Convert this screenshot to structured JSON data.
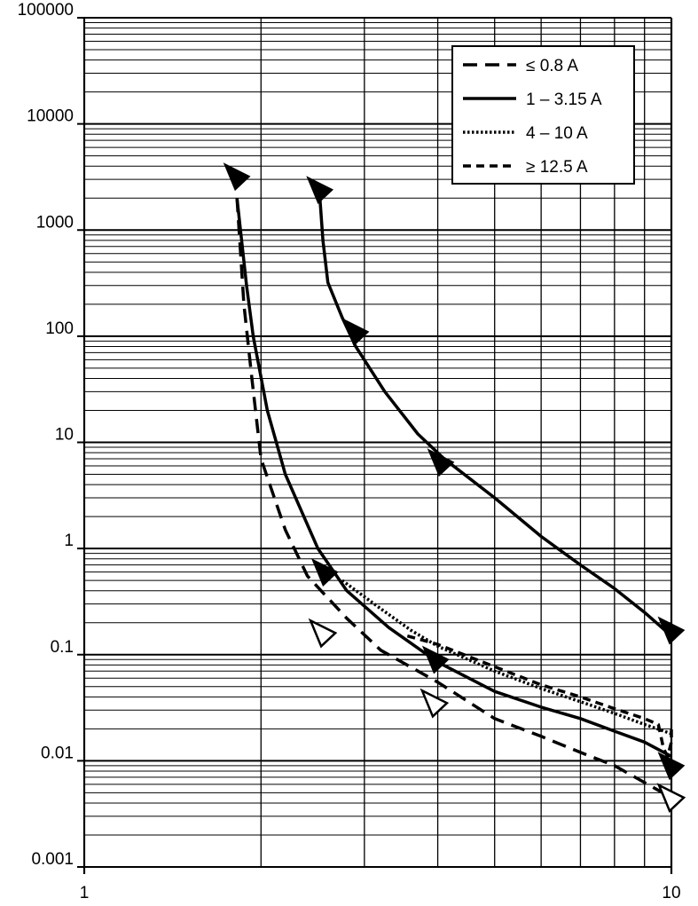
{
  "chart_data": {
    "type": "line",
    "title": "",
    "xlabel": "",
    "ylabel": "",
    "x_scale": "log",
    "y_scale": "log",
    "xlim": [
      1,
      10
    ],
    "ylim": [
      0.001,
      100000
    ],
    "grid": true,
    "x_tick_labels": [
      "1",
      "10"
    ],
    "y_tick_labels": [
      "0.001",
      "0.01",
      "0.1",
      "1",
      "10",
      "100",
      "1000",
      "10000",
      "100000"
    ],
    "legend_position": "top-right",
    "legend": [
      {
        "label": "≤ 0.8 A",
        "style": "longdash"
      },
      {
        "label": "1 – 3.15 A",
        "style": "solid"
      },
      {
        "label": "4 – 10 A",
        "style": "dotted"
      },
      {
        "label": "≥ 12.5 A",
        "style": "dashed"
      }
    ],
    "series": [
      {
        "style": "solid",
        "points": [
          [
            1.82,
            2000
          ],
          [
            1.89,
            300
          ],
          [
            1.94,
            100
          ],
          [
            2.05,
            20
          ],
          [
            2.2,
            5
          ],
          [
            2.5,
            1
          ],
          [
            2.8,
            0.4
          ],
          [
            3.3,
            0.18
          ],
          [
            4,
            0.085
          ],
          [
            5,
            0.045
          ],
          [
            6,
            0.032
          ],
          [
            7,
            0.025
          ],
          [
            8,
            0.019
          ],
          [
            9,
            0.015
          ],
          [
            10,
            0.011
          ]
        ]
      },
      {
        "style": "longdash",
        "points": [
          [
            1.82,
            2000
          ],
          [
            1.87,
            200
          ],
          [
            1.93,
            40
          ],
          [
            2,
            7
          ],
          [
            2.2,
            1.5
          ],
          [
            2.4,
            0.55
          ],
          [
            2.8,
            0.22
          ],
          [
            3.2,
            0.11
          ],
          [
            4,
            0.055
          ],
          [
            5,
            0.025
          ],
          [
            6,
            0.017
          ],
          [
            7,
            0.012
          ],
          [
            8,
            0.009
          ],
          [
            10,
            0.0045
          ]
        ]
      },
      {
        "style": "dotted",
        "points": [
          [
            2.75,
            0.5
          ],
          [
            3.2,
            0.27
          ],
          [
            3.6,
            0.17
          ],
          [
            4,
            0.12
          ],
          [
            5,
            0.07
          ],
          [
            6,
            0.048
          ],
          [
            7,
            0.036
          ],
          [
            8,
            0.028
          ],
          [
            9,
            0.022
          ],
          [
            10,
            0.018
          ]
        ]
      },
      {
        "style": "dashed",
        "points": [
          [
            3.55,
            0.15
          ],
          [
            4,
            0.125
          ],
          [
            5,
            0.077
          ],
          [
            6,
            0.052
          ],
          [
            7,
            0.04
          ],
          [
            8,
            0.031
          ],
          [
            9,
            0.025
          ],
          [
            9.5,
            0.022
          ],
          [
            9.7,
            0.013
          ],
          [
            9.85,
            0.011
          ],
          [
            10,
            0.015
          ],
          [
            10,
            0.022
          ]
        ]
      },
      {
        "style": "solid",
        "points": [
          [
            2.52,
            2000
          ],
          [
            2.55,
            800
          ],
          [
            2.6,
            320
          ],
          [
            2.75,
            150
          ],
          [
            2.9,
            80
          ],
          [
            3.25,
            30
          ],
          [
            3.7,
            12
          ],
          [
            4.1,
            7
          ],
          [
            5,
            3
          ],
          [
            6,
            1.3
          ],
          [
            7,
            0.7
          ],
          [
            8,
            0.42
          ],
          [
            9,
            0.25
          ],
          [
            10,
            0.15
          ]
        ]
      }
    ],
    "markers": [
      {
        "x": 1.82,
        "y": 3200,
        "kind": "filled"
      },
      {
        "x": 2.52,
        "y": 2400,
        "kind": "filled"
      },
      {
        "x": 2.9,
        "y": 110,
        "kind": "filled"
      },
      {
        "x": 4.05,
        "y": 6.5,
        "kind": "filled"
      },
      {
        "x": 2.57,
        "y": 0.6,
        "kind": "filled"
      },
      {
        "x": 3.97,
        "y": 0.09,
        "kind": "filled"
      },
      {
        "x": 10,
        "y": 0.17,
        "kind": "filled"
      },
      {
        "x": 10,
        "y": 0.009,
        "kind": "filled"
      },
      {
        "x": 2.55,
        "y": 0.16,
        "kind": "open"
      },
      {
        "x": 3.95,
        "y": 0.035,
        "kind": "open"
      },
      {
        "x": 10,
        "y": 0.0045,
        "kind": "open"
      }
    ]
  }
}
